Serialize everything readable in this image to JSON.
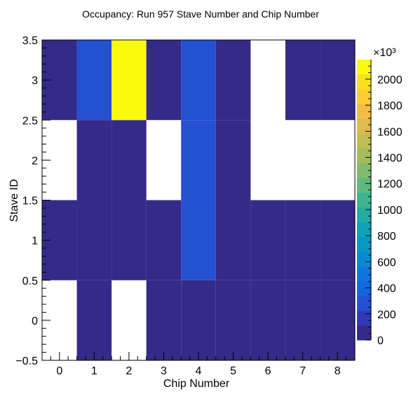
{
  "chart_data": {
    "type": "heatmap",
    "title": "Occupancy: Run 957 Stave Number and Chip Number",
    "xlabel": "Chip Number",
    "ylabel": "Stave ID",
    "x_categories": [
      "0",
      "1",
      "2",
      "3",
      "4",
      "5",
      "6",
      "7",
      "8"
    ],
    "y_categories": [
      "0",
      "1",
      "2",
      "3"
    ],
    "xlim": [
      -0.5,
      8.5
    ],
    "ylim": [
      -0.5,
      3.5
    ],
    "x_ticks": [
      "0",
      "1",
      "2",
      "3",
      "4",
      "5",
      "6",
      "7",
      "8"
    ],
    "y_ticks": [
      "−0.5",
      "0",
      "0.5",
      "1",
      "1.5",
      "2",
      "2.5",
      "3",
      "3.5"
    ],
    "z_unit_multiplier": "×10³",
    "z_max": 2150,
    "z_ticks": [
      "0",
      "200",
      "400",
      "600",
      "800",
      "1000",
      "1200",
      "1400",
      "1600",
      "1800",
      "2000"
    ],
    "values": [
      [
        null,
        80,
        null,
        80,
        80,
        80,
        80,
        80,
        80
      ],
      [
        80,
        80,
        80,
        80,
        300,
        80,
        80,
        80,
        80
      ],
      [
        null,
        80,
        80,
        null,
        300,
        80,
        null,
        null,
        null
      ],
      [
        80,
        300,
        2100,
        80,
        300,
        80,
        null,
        80,
        80
      ]
    ],
    "grid": false,
    "colormap": [
      "#352a87",
      "#2f3bb4",
      "#2450d2",
      "#1565dc",
      "#0f77db",
      "#0a89d2",
      "#0798c4",
      "#10a3b3",
      "#24aca2",
      "#40b48f",
      "#5fb97d",
      "#81bc6c",
      "#a3bd5e",
      "#c3bc55",
      "#dfba4f",
      "#f5bc45",
      "#fbcd32",
      "#f8e01f",
      "#f9fb0e"
    ]
  }
}
